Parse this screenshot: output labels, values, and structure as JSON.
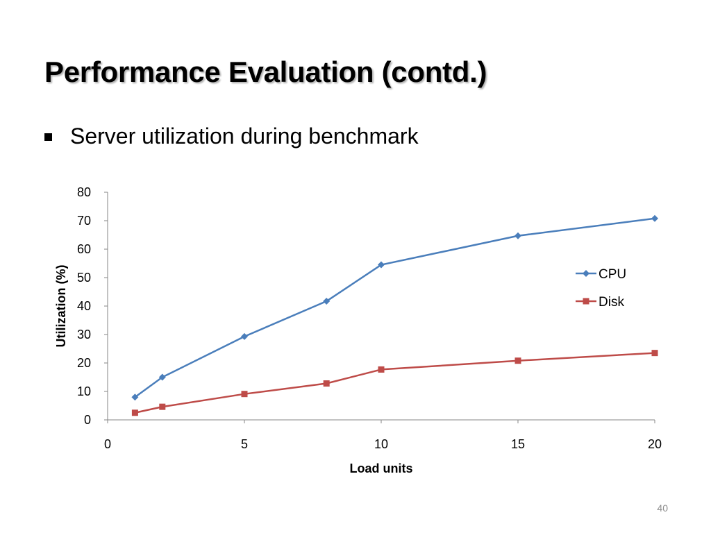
{
  "slide": {
    "title": "Performance Evaluation (contd.)",
    "bullet": "Server utilization during benchmark",
    "page_number": "40"
  },
  "colors": {
    "cpu": "#4a7ebb",
    "disk": "#be4b48",
    "axis": "#868686"
  },
  "chart_data": {
    "type": "scatter",
    "title": "",
    "xlabel": "Load units",
    "ylabel": "Utilization (%)",
    "xlim": [
      0,
      20
    ],
    "ylim": [
      0,
      80
    ],
    "x_ticks": [
      0,
      5,
      10,
      15,
      20
    ],
    "y_ticks": [
      0,
      10,
      20,
      30,
      40,
      50,
      60,
      70,
      80
    ],
    "grid": false,
    "legend_position": "right",
    "series": [
      {
        "name": "CPU",
        "marker": "diamond",
        "color": "#4a7ebb",
        "points": [
          [
            1,
            8
          ],
          [
            2,
            15
          ],
          [
            5,
            29.3
          ],
          [
            8,
            41.7
          ],
          [
            10,
            54.5
          ],
          [
            15,
            64.7
          ],
          [
            20,
            70.8
          ]
        ]
      },
      {
        "name": "Disk",
        "marker": "square",
        "color": "#be4b48",
        "points": [
          [
            1,
            2.5
          ],
          [
            2,
            4.6
          ],
          [
            5,
            9.1
          ],
          [
            8,
            12.8
          ],
          [
            10,
            17.7
          ],
          [
            15,
            20.8
          ],
          [
            20,
            23.5
          ]
        ]
      }
    ]
  }
}
